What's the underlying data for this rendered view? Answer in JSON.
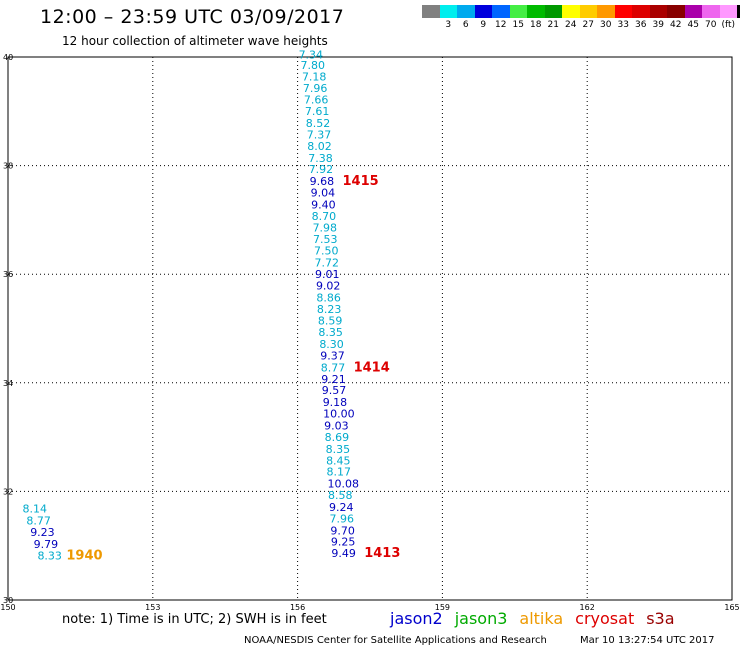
{
  "title": "12:00 – 23:59 UTC 03/09/2017",
  "subtitle": "12 hour collection of altimeter wave heights",
  "legend": {
    "colors": [
      "#808080",
      "#00eeee",
      "#00aaee",
      "#0000dd",
      "#0066ff",
      "#44ee44",
      "#00bb00",
      "#009900",
      "#ffff00",
      "#ffcc00",
      "#ff9900",
      "#ff0000",
      "#dd0000",
      "#aa0000",
      "#880000",
      "#aa00aa",
      "#ee66ee",
      "#ff99ff",
      "#000000"
    ],
    "labels": [
      "3",
      "6",
      "9",
      "12",
      "15",
      "18",
      "21",
      "24",
      "27",
      "30",
      "33",
      "36",
      "39",
      "42",
      "45",
      "70",
      "(ft)"
    ]
  },
  "axes": {
    "x_ticks": [
      "150",
      "153",
      "156",
      "159",
      "162",
      "165"
    ],
    "y_ticks": [
      "40",
      "38",
      "36",
      "34",
      "32",
      "30"
    ]
  },
  "map": {
    "lon_range": [
      150,
      165
    ],
    "lat_range": [
      30,
      40
    ],
    "grid": "dotted"
  },
  "colors": {
    "cyan": "#00aacc",
    "blue": "#0000bb",
    "pass": "#dd0000",
    "pass_orange": "#ee9900"
  },
  "observations": [
    {
      "lon": 156.02,
      "lat": 39.97,
      "v": "7.34",
      "c": "cyan"
    },
    {
      "lon": 156.06,
      "lat": 39.78,
      "v": "7.80",
      "c": "cyan"
    },
    {
      "lon": 156.09,
      "lat": 39.57,
      "v": "7.18",
      "c": "cyan"
    },
    {
      "lon": 156.11,
      "lat": 39.36,
      "v": "7.96",
      "c": "cyan"
    },
    {
      "lon": 156.13,
      "lat": 39.14,
      "v": "7.66",
      "c": "cyan"
    },
    {
      "lon": 156.15,
      "lat": 38.93,
      "v": "7.61",
      "c": "cyan"
    },
    {
      "lon": 156.17,
      "lat": 38.71,
      "v": "8.52",
      "c": "cyan"
    },
    {
      "lon": 156.19,
      "lat": 38.5,
      "v": "7.37",
      "c": "cyan"
    },
    {
      "lon": 156.2,
      "lat": 38.29,
      "v": "8.02",
      "c": "cyan"
    },
    {
      "lon": 156.22,
      "lat": 38.07,
      "v": "7.38",
      "c": "cyan"
    },
    {
      "lon": 156.23,
      "lat": 37.86,
      "v": "7.92",
      "c": "cyan"
    },
    {
      "lon": 156.25,
      "lat": 37.64,
      "v": "9.68",
      "c": "blue"
    },
    {
      "lon": 156.27,
      "lat": 37.43,
      "v": "9.04",
      "c": "blue"
    },
    {
      "lon": 156.28,
      "lat": 37.21,
      "v": "9.40",
      "c": "blue"
    },
    {
      "lon": 156.29,
      "lat": 37.0,
      "v": "8.70",
      "c": "cyan"
    },
    {
      "lon": 156.31,
      "lat": 36.79,
      "v": "7.98",
      "c": "cyan"
    },
    {
      "lon": 156.32,
      "lat": 36.57,
      "v": "7.53",
      "c": "cyan"
    },
    {
      "lon": 156.34,
      "lat": 36.36,
      "v": "7.50",
      "c": "cyan"
    },
    {
      "lon": 156.35,
      "lat": 36.14,
      "v": "7.72",
      "c": "cyan"
    },
    {
      "lon": 156.36,
      "lat": 35.93,
      "v": "9.01",
      "c": "blue"
    },
    {
      "lon": 156.38,
      "lat": 35.72,
      "v": "9.02",
      "c": "blue"
    },
    {
      "lon": 156.39,
      "lat": 35.5,
      "v": "8.86",
      "c": "cyan"
    },
    {
      "lon": 156.4,
      "lat": 35.29,
      "v": "8.23",
      "c": "cyan"
    },
    {
      "lon": 156.42,
      "lat": 35.07,
      "v": "8.59",
      "c": "cyan"
    },
    {
      "lon": 156.43,
      "lat": 34.86,
      "v": "8.35",
      "c": "cyan"
    },
    {
      "lon": 156.45,
      "lat": 34.64,
      "v": "8.30",
      "c": "cyan"
    },
    {
      "lon": 156.47,
      "lat": 34.43,
      "v": "9.37",
      "c": "blue"
    },
    {
      "lon": 156.48,
      "lat": 34.21,
      "v": "8.77",
      "c": "cyan"
    },
    {
      "lon": 156.49,
      "lat": 34.0,
      "v": "9.21",
      "c": "blue"
    },
    {
      "lon": 156.5,
      "lat": 33.79,
      "v": "9.57",
      "c": "blue"
    },
    {
      "lon": 156.52,
      "lat": 33.57,
      "v": "9.18",
      "c": "blue"
    },
    {
      "lon": 156.53,
      "lat": 33.36,
      "v": "10.00",
      "c": "blue"
    },
    {
      "lon": 156.55,
      "lat": 33.14,
      "v": "9.03",
      "c": "blue"
    },
    {
      "lon": 156.56,
      "lat": 32.93,
      "v": "8.69",
      "c": "cyan"
    },
    {
      "lon": 156.58,
      "lat": 32.71,
      "v": "8.35",
      "c": "cyan"
    },
    {
      "lon": 156.59,
      "lat": 32.5,
      "v": "8.45",
      "c": "cyan"
    },
    {
      "lon": 156.6,
      "lat": 32.29,
      "v": "8.17",
      "c": "cyan"
    },
    {
      "lon": 156.62,
      "lat": 32.07,
      "v": "10.08",
      "c": "blue"
    },
    {
      "lon": 156.63,
      "lat": 31.86,
      "v": "8.58",
      "c": "cyan"
    },
    {
      "lon": 156.65,
      "lat": 31.64,
      "v": "9.24",
      "c": "blue"
    },
    {
      "lon": 156.66,
      "lat": 31.43,
      "v": "7.96",
      "c": "cyan"
    },
    {
      "lon": 156.68,
      "lat": 31.21,
      "v": "9.70",
      "c": "blue"
    },
    {
      "lon": 156.69,
      "lat": 31.0,
      "v": "9.25",
      "c": "blue"
    },
    {
      "lon": 156.7,
      "lat": 30.79,
      "v": "9.49",
      "c": "blue"
    },
    {
      "lon": 150.3,
      "lat": 31.61,
      "v": "8.14",
      "c": "cyan"
    },
    {
      "lon": 150.38,
      "lat": 31.39,
      "v": "8.77",
      "c": "cyan"
    },
    {
      "lon": 150.46,
      "lat": 31.18,
      "v": "9.23",
      "c": "blue"
    },
    {
      "lon": 150.53,
      "lat": 30.96,
      "v": "9.79",
      "c": "blue"
    },
    {
      "lon": 150.61,
      "lat": 30.75,
      "v": "8.33",
      "c": "cyan"
    }
  ],
  "passes": [
    {
      "lon": 156.93,
      "lat": 37.64,
      "v": "1415",
      "c": "pass"
    },
    {
      "lon": 157.16,
      "lat": 34.21,
      "v": "1414",
      "c": "pass"
    },
    {
      "lon": 157.38,
      "lat": 30.79,
      "v": "1413",
      "c": "pass"
    },
    {
      "lon": 151.21,
      "lat": 30.75,
      "v": "1940",
      "c": "pass_orange"
    }
  ],
  "note": "note: 1) Time is in UTC; 2) SWH is in feet",
  "satellites": [
    {
      "name": "jason2",
      "color": "#0000cc"
    },
    {
      "name": "jason3",
      "color": "#00aa00"
    },
    {
      "name": "altika",
      "color": "#ee9900"
    },
    {
      "name": "cryosat",
      "color": "#dd0000"
    },
    {
      "name": "s3a",
      "color": "#990000"
    }
  ],
  "credit": "NOAA/NESDIS Center for Satellite Applications and Research",
  "timestamp": "Mar 10 13:27:54 UTC 2017"
}
